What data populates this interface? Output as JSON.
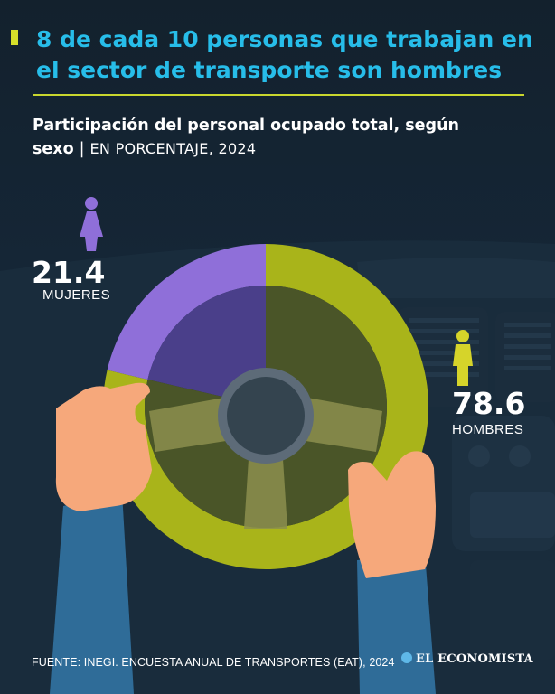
{
  "headline": "8 de cada 10 personas que trabajan en el sector de transporte son hombres",
  "subtitle": {
    "main": "Participación del personal ocupado total, según sexo",
    "separator": "|",
    "unit": "EN PORCENTAJE, 2024"
  },
  "women": {
    "value": "21.4",
    "label": "MUJERES",
    "icon": "woman-figure-icon"
  },
  "men": {
    "value": "78.6",
    "label": "HOMBRES",
    "icon": "man-figure-icon"
  },
  "footer": {
    "source": "FUENTE: INEGI. ENCUESTA ANUAL DE TRANSPORTES (EAT), 2024",
    "brand": "EL ECONOMISTA",
    "brand_icon": "el-economista-logo-icon"
  },
  "colors": {
    "background": "#13212d",
    "headline": "#27bde9",
    "accent": "#d6e02a",
    "women": "#8f6fd9",
    "men": "#a9b41a"
  },
  "chart_data": {
    "type": "pie",
    "title": "Participación del personal ocupado total, según sexo",
    "unit": "EN PORCENTAJE, 2024",
    "series": [
      {
        "name": "MUJERES",
        "value": 21.4,
        "color": "#8f6fd9"
      },
      {
        "name": "HOMBRES",
        "value": 78.6,
        "color": "#a9b41a"
      }
    ]
  }
}
